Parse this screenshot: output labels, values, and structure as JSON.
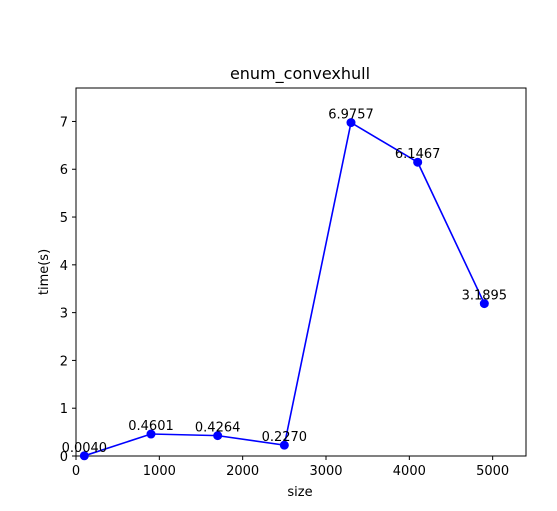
{
  "chart_data": {
    "type": "line",
    "title": "enum_convexhull",
    "xlabel": "size",
    "ylabel": "time(s)",
    "xlim": [
      0,
      5400
    ],
    "ylim": [
      0,
      7.7
    ],
    "grid": false,
    "x_ticks": [
      0,
      1000,
      2000,
      3000,
      4000,
      5000
    ],
    "y_ticks": [
      0,
      1,
      2,
      3,
      4,
      5,
      6,
      7
    ],
    "series": [
      {
        "color": "#0000ff",
        "marker": "circle",
        "x": [
          100,
          900,
          1700,
          2500,
          3300,
          4100,
          4900
        ],
        "y": [
          0.004,
          0.4601,
          0.4264,
          0.227,
          6.9757,
          6.1467,
          3.1895
        ],
        "labels": [
          "0.0040",
          "0.4601",
          "0.4264",
          "0.2270",
          "6.9757",
          "6.1467",
          "3.1895"
        ]
      }
    ]
  }
}
